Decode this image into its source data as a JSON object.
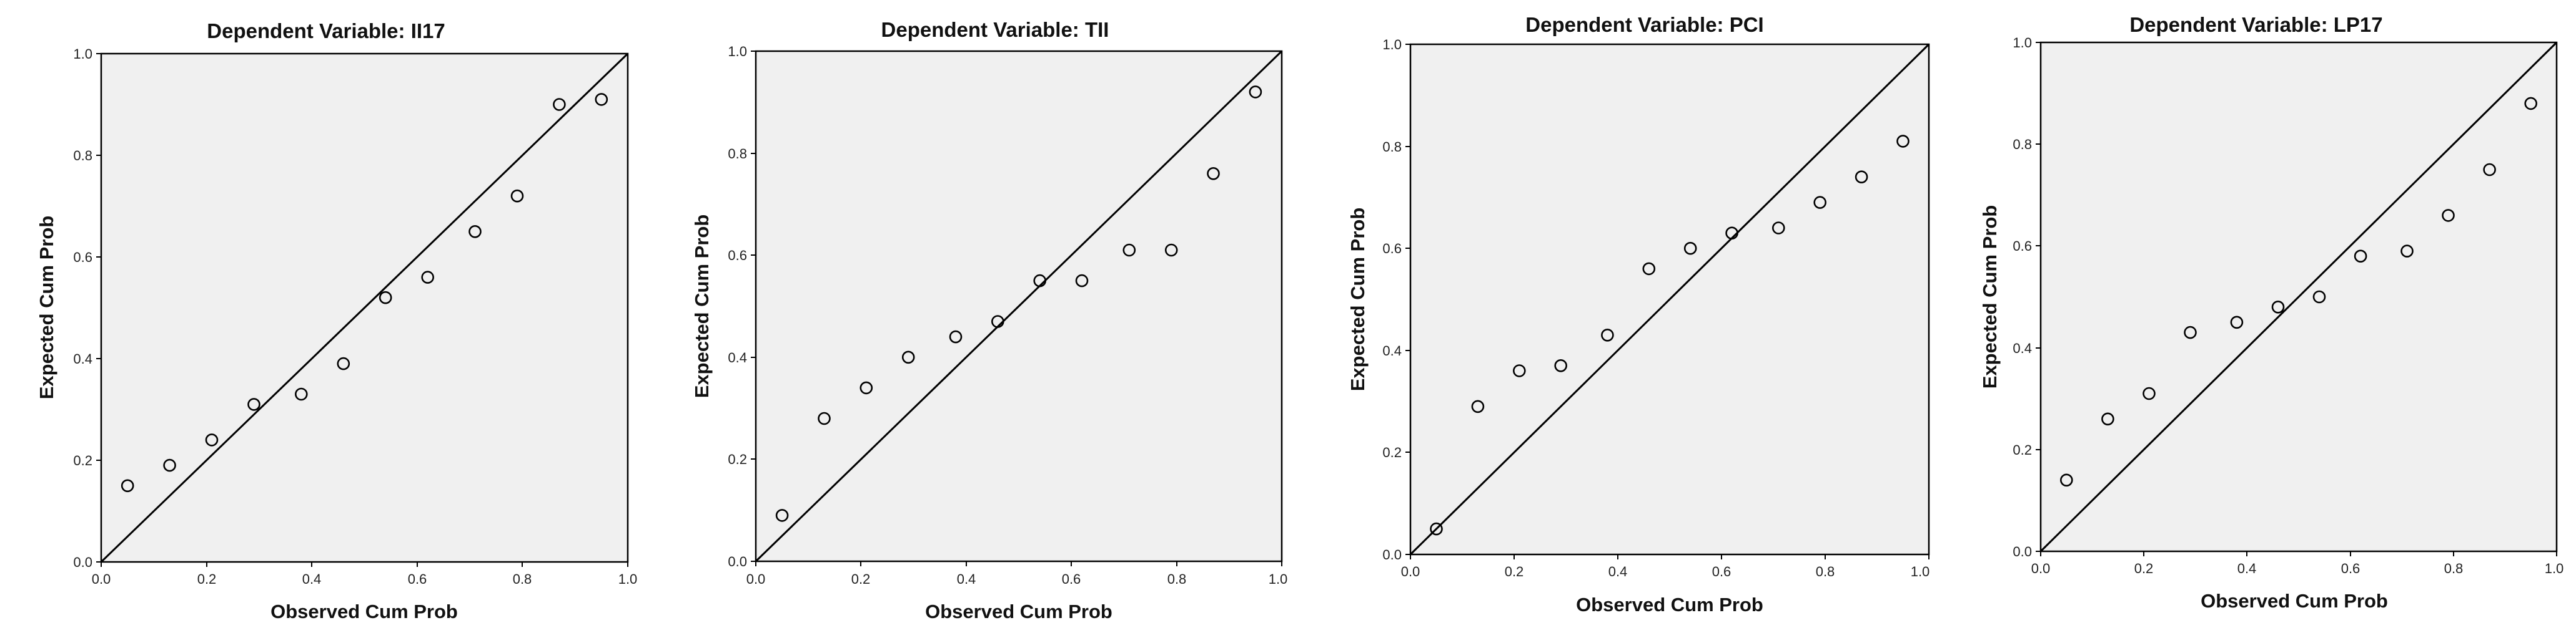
{
  "chart_data": [
    {
      "type": "scatter",
      "title": "Dependent Variable: II17",
      "xlabel": "Observed Cum Prob",
      "ylabel": "Expected Cum Prob",
      "xlim": [
        0,
        1
      ],
      "ylim": [
        0,
        1
      ],
      "xticks": [
        "0.0",
        "0.2",
        "0.4",
        "0.6",
        "0.8",
        "1.0"
      ],
      "yticks": [
        "0.0",
        "0.2",
        "0.4",
        "0.6",
        "0.8",
        "1.0"
      ],
      "reference_line": "y = x",
      "x": [
        0.05,
        0.13,
        0.21,
        0.29,
        0.38,
        0.46,
        0.54,
        0.62,
        0.71,
        0.79,
        0.87,
        0.95
      ],
      "y": [
        0.15,
        0.19,
        0.24,
        0.31,
        0.33,
        0.39,
        0.52,
        0.56,
        0.65,
        0.72,
        0.9,
        0.91
      ]
    },
    {
      "type": "scatter",
      "title": "Dependent Variable: TII",
      "xlabel": "Observed Cum Prob",
      "ylabel": "Expected Cum Prob",
      "xlim": [
        0,
        1
      ],
      "ylim": [
        0,
        1
      ],
      "xticks": [
        "0.0",
        "0.2",
        "0.4",
        "0.6",
        "0.8",
        "1.0"
      ],
      "yticks": [
        "0.0",
        "0.2",
        "0.4",
        "0.6",
        "0.8",
        "1.0"
      ],
      "reference_line": "y = x",
      "x": [
        0.05,
        0.13,
        0.21,
        0.29,
        0.38,
        0.46,
        0.54,
        0.62,
        0.71,
        0.79,
        0.87,
        0.95
      ],
      "y": [
        0.09,
        0.28,
        0.34,
        0.4,
        0.44,
        0.47,
        0.55,
        0.55,
        0.61,
        0.61,
        0.76,
        0.92
      ]
    },
    {
      "type": "scatter",
      "title": "Dependent Variable: PCI",
      "xlabel": "Observed Cum Prob",
      "ylabel": "Expected Cum Prob",
      "xlim": [
        0,
        1
      ],
      "ylim": [
        0,
        1
      ],
      "xticks": [
        "0.0",
        "0.2",
        "0.4",
        "0.6",
        "0.8",
        "1.0"
      ],
      "yticks": [
        "0.0",
        "0.2",
        "0.4",
        "0.6",
        "0.8",
        "1.0"
      ],
      "reference_line": "y = x",
      "x": [
        0.05,
        0.13,
        0.21,
        0.29,
        0.38,
        0.46,
        0.54,
        0.62,
        0.71,
        0.79,
        0.87,
        0.95
      ],
      "y": [
        0.05,
        0.29,
        0.36,
        0.37,
        0.43,
        0.56,
        0.6,
        0.63,
        0.64,
        0.69,
        0.74,
        0.81
      ]
    },
    {
      "type": "scatter",
      "title": "Dependent Variable: LP17",
      "xlabel": "Observed Cum Prob",
      "ylabel": "Expected Cum Prob",
      "xlim": [
        0,
        1
      ],
      "ylim": [
        0,
        1
      ],
      "xticks": [
        "0.0",
        "0.2",
        "0.4",
        "0.6",
        "0.8",
        "1.0"
      ],
      "yticks": [
        "0.0",
        "0.2",
        "0.4",
        "0.6",
        "0.8",
        "1.0"
      ],
      "reference_line": "y = x",
      "x": [
        0.05,
        0.13,
        0.21,
        0.29,
        0.38,
        0.46,
        0.54,
        0.62,
        0.71,
        0.79,
        0.87,
        0.95
      ],
      "y": [
        0.14,
        0.26,
        0.31,
        0.43,
        0.45,
        0.48,
        0.5,
        0.58,
        0.59,
        0.66,
        0.75,
        0.88
      ]
    }
  ]
}
